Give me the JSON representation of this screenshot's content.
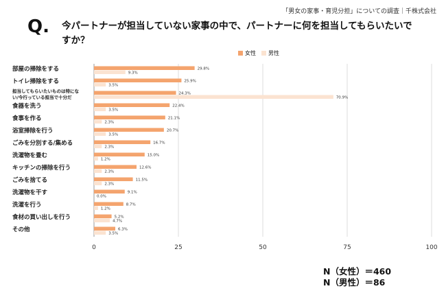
{
  "source": "「男女の家事・育児分担」についての調査｜千株式会社",
  "question": {
    "mark": "Q.",
    "text": "今パートナーが担当していない家事の中で、パートナーに何を担当してもらいたいですか？"
  },
  "n": {
    "female": "N（女性）＝460",
    "male": "N（男性）＝86"
  },
  "chart_data": {
    "type": "bar",
    "orientation": "horizontal",
    "title": "今パートナーが担当していない家事の中で、パートナーに何を担当してもらいたいですか？",
    "categories": [
      "部屋の掃除をする",
      "トイレ掃除をする",
      "担当してもらいたいものは特にない/今行っている担当で十分だ",
      "食器を洗う",
      "食事を作る",
      "浴室掃除を行う",
      "ごみを分別する/集める",
      "洗濯物を畳む",
      "キッチンの掃除を行う",
      "ごみを捨てる",
      "洗濯物を干す",
      "洗濯を行う",
      "食材の買い出しを行う",
      "その他"
    ],
    "category_lines": [
      [
        "部屋の掃除をする"
      ],
      [
        "トイレ掃除をする"
      ],
      [
        "担当してもらいたいものは特にな",
        "い/今行っている担当で十分だ"
      ],
      [
        "食器を洗う"
      ],
      [
        "食事を作る"
      ],
      [
        "浴室掃除を行う"
      ],
      [
        "ごみを分別する/集める"
      ],
      [
        "洗濯物を畳む"
      ],
      [
        "キッチンの掃除を行う"
      ],
      [
        "ごみを捨てる"
      ],
      [
        "洗濯物を干す"
      ],
      [
        "洗濯を行う"
      ],
      [
        "食材の買い出しを行う"
      ],
      [
        "その他"
      ]
    ],
    "series": [
      {
        "name": "女性",
        "color": "#f4a46e",
        "values": [
          29.8,
          25.9,
          24.3,
          22.4,
          21.1,
          20.7,
          16.7,
          15.0,
          12.6,
          11.5,
          9.1,
          8.7,
          5.2,
          6.3
        ],
        "labels": [
          "29.8%",
          "25.9%",
          "24.3%",
          "22.4%",
          "21.1%",
          "20.7%",
          "16.7%",
          "15.0%",
          "12.6%",
          "11.5%",
          "9.1%",
          "8.7%",
          "5.2%",
          "6.3%"
        ]
      },
      {
        "name": "男性",
        "color": "#fbe3d1",
        "values": [
          9.3,
          3.5,
          70.9,
          3.5,
          2.3,
          3.5,
          2.3,
          1.2,
          2.3,
          2.3,
          0.0,
          1.2,
          4.7,
          3.5
        ],
        "labels": [
          "9.3%",
          "3.5%",
          "70.9%",
          "3.5%",
          "2.3%",
          "3.5%",
          "2.3%",
          "1.2%",
          "2.3%",
          "2.3%",
          "0.0%",
          "1.2%",
          "4.7%",
          "3.5%"
        ]
      }
    ],
    "xlim": [
      0,
      100
    ],
    "xticks": [
      "0",
      "25",
      "50",
      "75",
      "100"
    ],
    "grid": true,
    "legend": "top"
  }
}
